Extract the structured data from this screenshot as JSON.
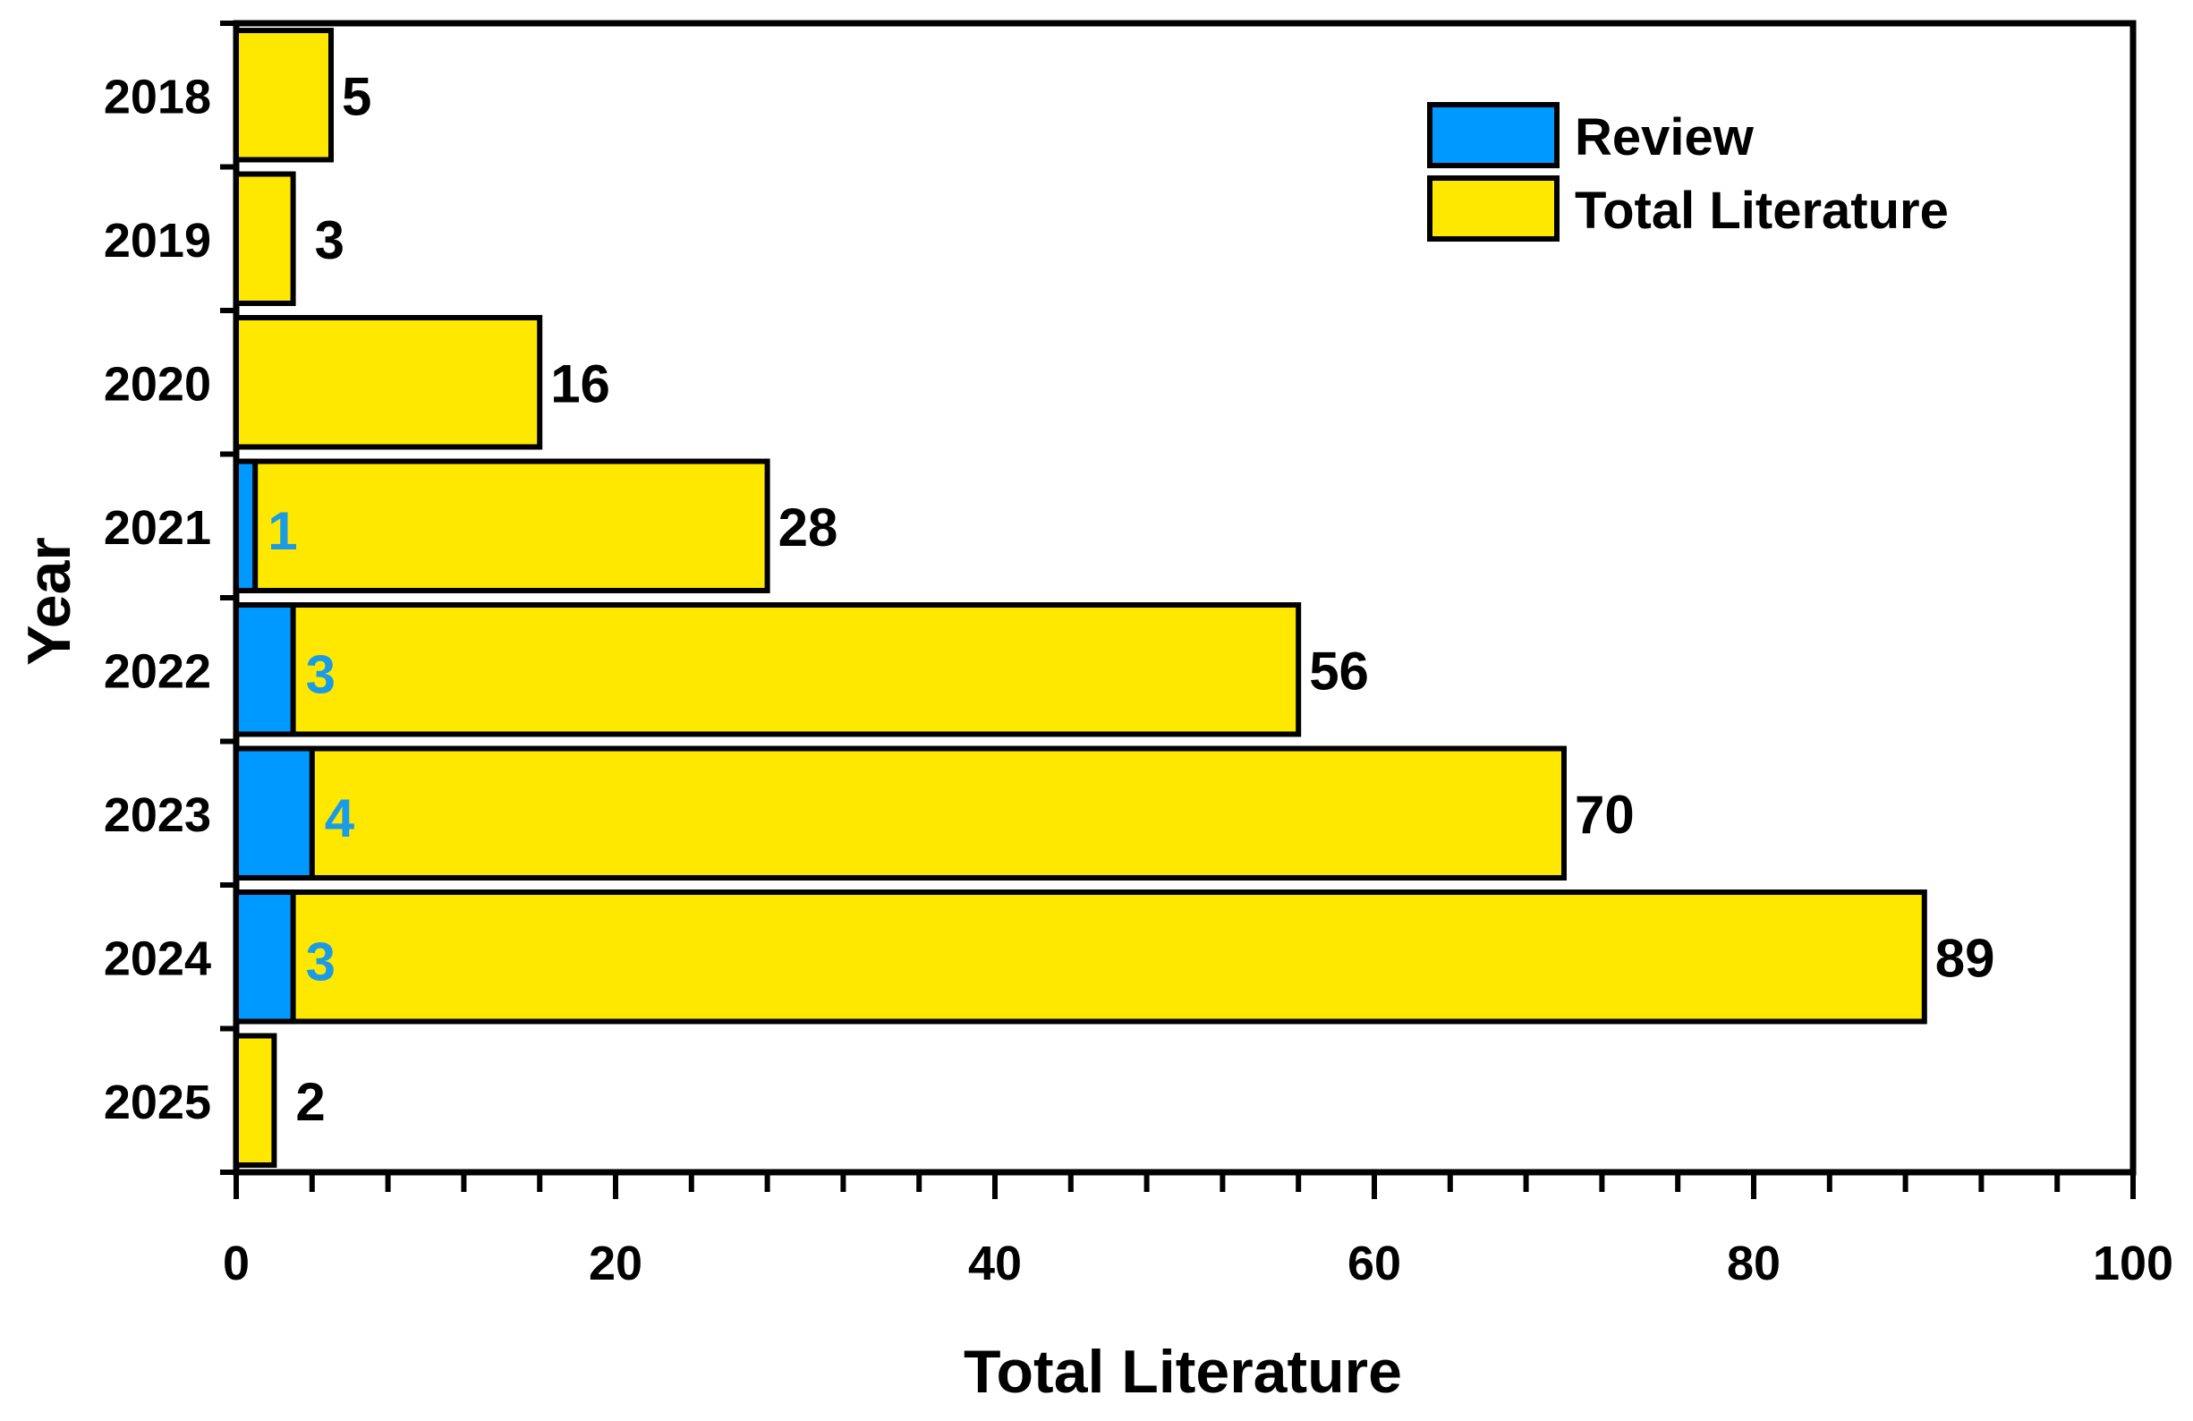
{
  "colors": {
    "review": "#0099ff",
    "total": "#ffe800",
    "review_label": "#1a9be6",
    "outline": "#000000"
  },
  "chart_data": {
    "type": "bar",
    "orientation": "horizontal",
    "stacked": "overlay",
    "categories": [
      "2018",
      "2019",
      "2020",
      "2021",
      "2022",
      "2023",
      "2024",
      "2025"
    ],
    "series": [
      {
        "name": "Review",
        "values": [
          0,
          0,
          0,
          1,
          3,
          4,
          3,
          0
        ],
        "labels": [
          "",
          "",
          "",
          "1",
          "3",
          "4",
          "3",
          ""
        ]
      },
      {
        "name": "Total Literature",
        "values": [
          5,
          3,
          16,
          28,
          56,
          70,
          89,
          2
        ],
        "labels": [
          "5",
          "3",
          "16",
          "28",
          "56",
          "70",
          "89",
          "2"
        ]
      }
    ],
    "xlabel": "Total Literature",
    "ylabel": "Year",
    "xlim": [
      0,
      100
    ],
    "x_ticks": [
      "0",
      "20",
      "40",
      "60",
      "80",
      "100"
    ],
    "x_minor_step": 4,
    "grid": false,
    "legend_position": "top-right"
  }
}
